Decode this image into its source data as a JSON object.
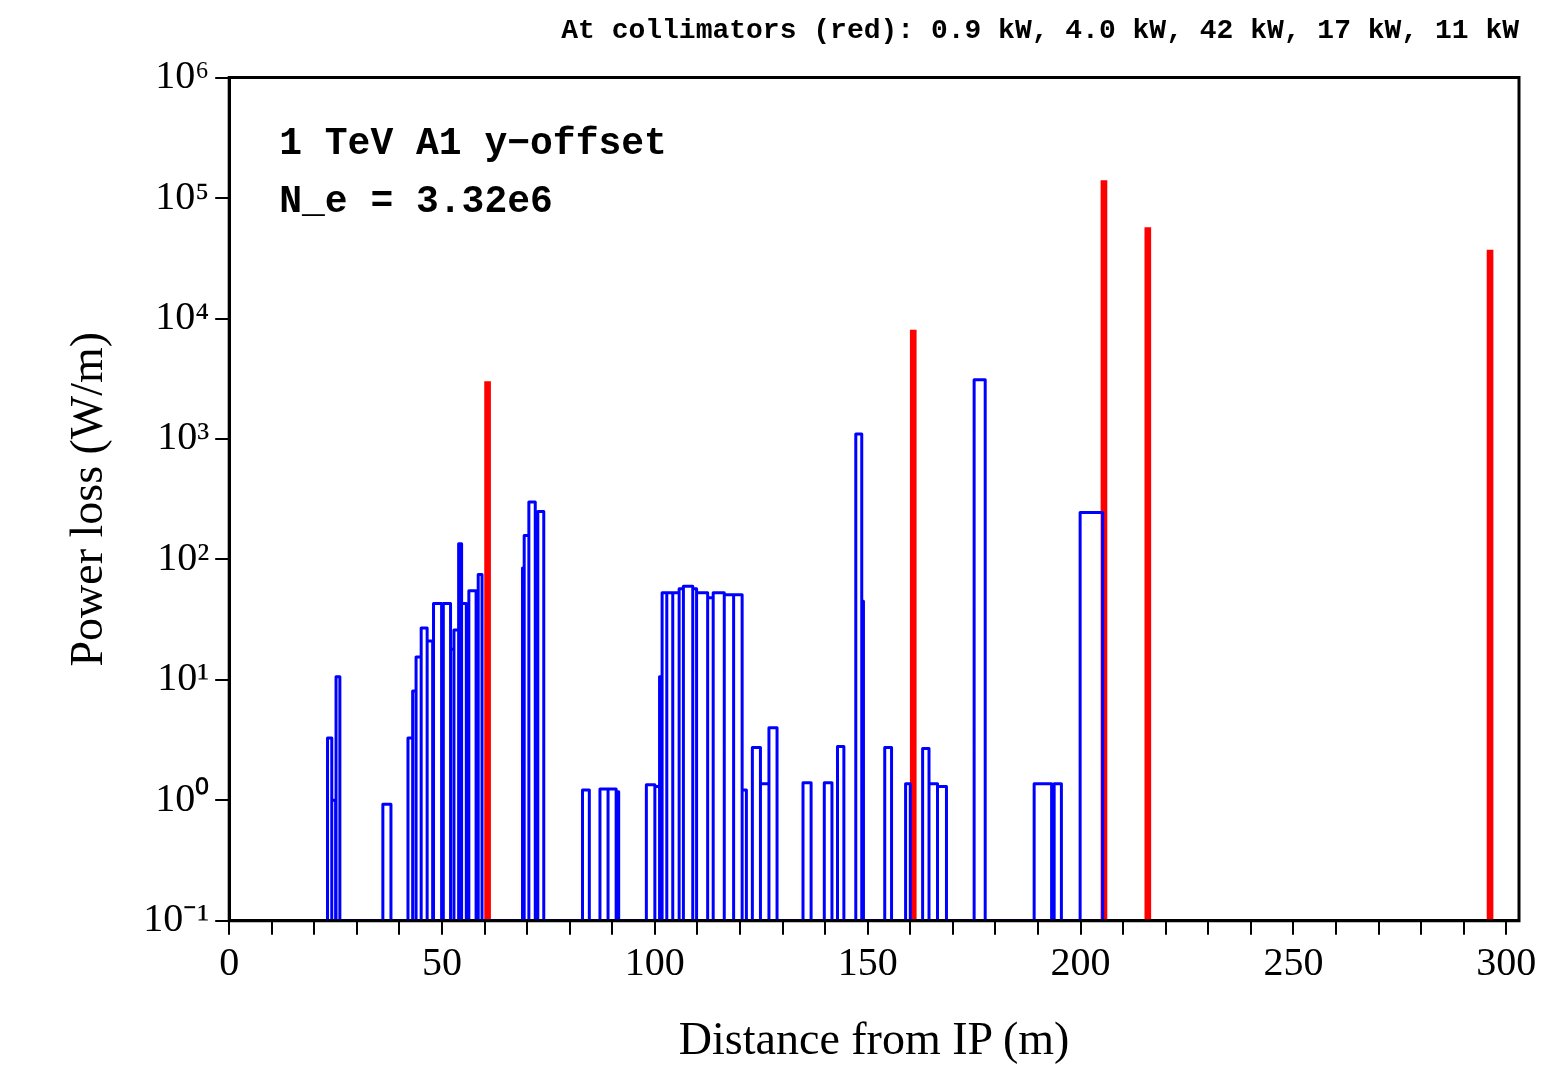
{
  "chart_data": {
    "type": "histogram",
    "title": "At collimators (red): 0.9 kW, 4.0 kW, 42 kW, 17 kW, 11 kW",
    "xlabel": "Distance from IP (m)",
    "ylabel": "Power loss (W/m)",
    "annotations": [
      "1 TeV A1 y−offset",
      "N_e = 3.32e6"
    ],
    "log": "y",
    "grid": false,
    "legend": false,
    "xlim": [
      0,
      303
    ],
    "ylim": [
      0.1,
      1000000
    ],
    "xticks": [
      0,
      {
        "value": 10,
        "label": null
      },
      {
        "value": 20,
        "label": null
      },
      {
        "value": 30,
        "label": null
      },
      {
        "value": 40,
        "label": null
      },
      50,
      {
        "value": 60,
        "label": null
      },
      {
        "value": 70,
        "label": null
      },
      {
        "value": 80,
        "label": null
      },
      {
        "value": 90,
        "label": null
      },
      100,
      {
        "value": 110,
        "label": null
      },
      {
        "value": 120,
        "label": null
      },
      {
        "value": 130,
        "label": null
      },
      {
        "value": 140,
        "label": null
      },
      150,
      {
        "value": 160,
        "label": null
      },
      {
        "value": 170,
        "label": null
      },
      {
        "value": 180,
        "label": null
      },
      {
        "value": 190,
        "label": null
      },
      200,
      {
        "value": 210,
        "label": null
      },
      {
        "value": 220,
        "label": null
      },
      {
        "value": 230,
        "label": null
      },
      {
        "value": 240,
        "label": null
      },
      250,
      {
        "value": 260,
        "label": null
      },
      {
        "value": 270,
        "label": null
      },
      {
        "value": 280,
        "label": null
      },
      {
        "value": 290,
        "label": null
      },
      300
    ],
    "yticks": [
      {
        "value": 0.1,
        "label": "10⁻¹"
      },
      {
        "value": 1,
        "label": "10⁰"
      },
      {
        "value": 10,
        "label": "10¹"
      },
      {
        "value": 100,
        "label": "10²"
      },
      {
        "value": 1000,
        "label": "10³"
      },
      {
        "value": 10000,
        "label": "10⁴"
      },
      {
        "value": 100000,
        "label": "10⁵"
      },
      {
        "value": 1000000,
        "label": "10⁶"
      }
    ],
    "series": [
      {
        "color": "#0000ff",
        "bins": [
          23.1,
          24.1,
          25.0,
          25.1,
          26.0,
          36.1,
          38.0,
          42.0,
          43.1,
          43.9,
          45.1,
          46.5,
          47.8,
          48.0,
          49.9,
          50.3,
          52.0,
          52.8,
          53.9,
          54.6,
          55.7,
          56.3,
          58.0,
          58.5,
          59.4,
          68.9,
          69.3,
          70.4,
          71.9,
          72.5,
          73.9,
          83.0,
          84.6,
          87.1,
          89.0,
          90.9,
          91.5,
          98.0,
          100.0,
          101.1,
          101.7,
          102.8,
          104.2,
          105.7,
          106.7,
          108.9,
          109.8,
          112.4,
          113.7,
          116.3,
          118.5,
          120.5,
          121.5,
          122.9,
          124.8,
          126.8,
          128.7,
          134.8,
          136.7,
          139.8,
          141.6,
          142.9,
          144.4,
          147.2,
          148.6,
          149.0,
          154.0,
          155.6,
          158.9,
          160.0,
          162.9,
          164.4,
          166.4,
          168.5,
          175.0,
          177.6,
          189.1,
          193.2,
          193.8,
          195.5,
          199.9,
          205.2
        ],
        "values": [
          3.3,
          1.0,
          null,
          10.6,
          null,
          0.93,
          null,
          3.3,
          8.1,
          15.5,
          27,
          21,
          null,
          43,
          36,
          43,
          18,
          26,
          135,
          43,
          20,
          55,
          23,
          75,
          null,
          85,
          158,
          300,
          166,
          250,
          null,
          1.22,
          null,
          1.24,
          1.24,
          1.18,
          null,
          1.35,
          1.3,
          10.6,
          53,
          53,
          53,
          57,
          60,
          57,
          53,
          48,
          53,
          51,
          51,
          1.22,
          null,
          2.75,
          1.37,
          4.0,
          null,
          1.4,
          null,
          1.4,
          null,
          2.8,
          null,
          1100,
          45,
          null,
          2.75,
          null,
          1.37,
          null,
          2.7,
          1.37,
          1.3,
          null,
          3100,
          null,
          1.37,
          null,
          1.37,
          null,
          245
        ]
      },
      {
        "type": "bar",
        "color": "#ff0000",
        "x": [
          60.7,
          160.7,
          205.5,
          215.8,
          296.2
        ],
        "values": [
          3000,
          8000,
          140000,
          57000,
          37000
        ]
      }
    ]
  }
}
